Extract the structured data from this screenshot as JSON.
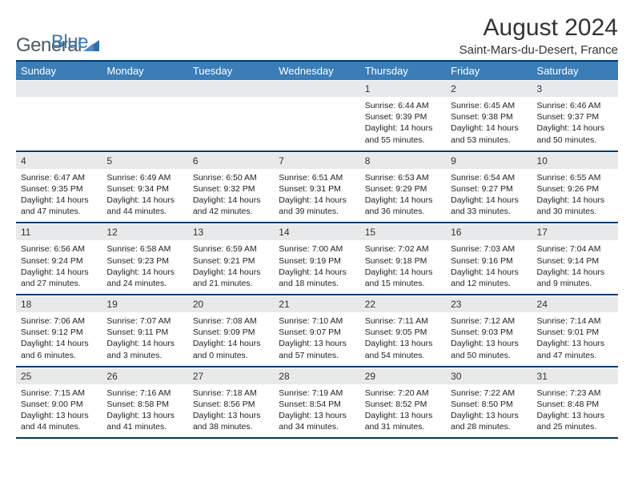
{
  "brand": {
    "part1": "General",
    "part2": "Blue"
  },
  "title": "August 2024",
  "subtitle": "Saint-Mars-du-Desert, France",
  "colors": {
    "header_bg": "#3b7db7",
    "border_dark": "#003a6b",
    "daynum_bg": "#e8e9ea",
    "text": "#222222",
    "logo_gray": "#4b5a66"
  },
  "day_headers": [
    "Sunday",
    "Monday",
    "Tuesday",
    "Wednesday",
    "Thursday",
    "Friday",
    "Saturday"
  ],
  "weeks": [
    [
      {
        "empty": true
      },
      {
        "empty": true
      },
      {
        "empty": true
      },
      {
        "empty": true
      },
      {
        "n": "1",
        "sr": "Sunrise: 6:44 AM",
        "ss": "Sunset: 9:39 PM",
        "dl1": "Daylight: 14 hours",
        "dl2": "and 55 minutes."
      },
      {
        "n": "2",
        "sr": "Sunrise: 6:45 AM",
        "ss": "Sunset: 9:38 PM",
        "dl1": "Daylight: 14 hours",
        "dl2": "and 53 minutes."
      },
      {
        "n": "3",
        "sr": "Sunrise: 6:46 AM",
        "ss": "Sunset: 9:37 PM",
        "dl1": "Daylight: 14 hours",
        "dl2": "and 50 minutes."
      }
    ],
    [
      {
        "n": "4",
        "sr": "Sunrise: 6:47 AM",
        "ss": "Sunset: 9:35 PM",
        "dl1": "Daylight: 14 hours",
        "dl2": "and 47 minutes."
      },
      {
        "n": "5",
        "sr": "Sunrise: 6:49 AM",
        "ss": "Sunset: 9:34 PM",
        "dl1": "Daylight: 14 hours",
        "dl2": "and 44 minutes."
      },
      {
        "n": "6",
        "sr": "Sunrise: 6:50 AM",
        "ss": "Sunset: 9:32 PM",
        "dl1": "Daylight: 14 hours",
        "dl2": "and 42 minutes."
      },
      {
        "n": "7",
        "sr": "Sunrise: 6:51 AM",
        "ss": "Sunset: 9:31 PM",
        "dl1": "Daylight: 14 hours",
        "dl2": "and 39 minutes."
      },
      {
        "n": "8",
        "sr": "Sunrise: 6:53 AM",
        "ss": "Sunset: 9:29 PM",
        "dl1": "Daylight: 14 hours",
        "dl2": "and 36 minutes."
      },
      {
        "n": "9",
        "sr": "Sunrise: 6:54 AM",
        "ss": "Sunset: 9:27 PM",
        "dl1": "Daylight: 14 hours",
        "dl2": "and 33 minutes."
      },
      {
        "n": "10",
        "sr": "Sunrise: 6:55 AM",
        "ss": "Sunset: 9:26 PM",
        "dl1": "Daylight: 14 hours",
        "dl2": "and 30 minutes."
      }
    ],
    [
      {
        "n": "11",
        "sr": "Sunrise: 6:56 AM",
        "ss": "Sunset: 9:24 PM",
        "dl1": "Daylight: 14 hours",
        "dl2": "and 27 minutes."
      },
      {
        "n": "12",
        "sr": "Sunrise: 6:58 AM",
        "ss": "Sunset: 9:23 PM",
        "dl1": "Daylight: 14 hours",
        "dl2": "and 24 minutes."
      },
      {
        "n": "13",
        "sr": "Sunrise: 6:59 AM",
        "ss": "Sunset: 9:21 PM",
        "dl1": "Daylight: 14 hours",
        "dl2": "and 21 minutes."
      },
      {
        "n": "14",
        "sr": "Sunrise: 7:00 AM",
        "ss": "Sunset: 9:19 PM",
        "dl1": "Daylight: 14 hours",
        "dl2": "and 18 minutes."
      },
      {
        "n": "15",
        "sr": "Sunrise: 7:02 AM",
        "ss": "Sunset: 9:18 PM",
        "dl1": "Daylight: 14 hours",
        "dl2": "and 15 minutes."
      },
      {
        "n": "16",
        "sr": "Sunrise: 7:03 AM",
        "ss": "Sunset: 9:16 PM",
        "dl1": "Daylight: 14 hours",
        "dl2": "and 12 minutes."
      },
      {
        "n": "17",
        "sr": "Sunrise: 7:04 AM",
        "ss": "Sunset: 9:14 PM",
        "dl1": "Daylight: 14 hours",
        "dl2": "and 9 minutes."
      }
    ],
    [
      {
        "n": "18",
        "sr": "Sunrise: 7:06 AM",
        "ss": "Sunset: 9:12 PM",
        "dl1": "Daylight: 14 hours",
        "dl2": "and 6 minutes."
      },
      {
        "n": "19",
        "sr": "Sunrise: 7:07 AM",
        "ss": "Sunset: 9:11 PM",
        "dl1": "Daylight: 14 hours",
        "dl2": "and 3 minutes."
      },
      {
        "n": "20",
        "sr": "Sunrise: 7:08 AM",
        "ss": "Sunset: 9:09 PM",
        "dl1": "Daylight: 14 hours",
        "dl2": "and 0 minutes."
      },
      {
        "n": "21",
        "sr": "Sunrise: 7:10 AM",
        "ss": "Sunset: 9:07 PM",
        "dl1": "Daylight: 13 hours",
        "dl2": "and 57 minutes."
      },
      {
        "n": "22",
        "sr": "Sunrise: 7:11 AM",
        "ss": "Sunset: 9:05 PM",
        "dl1": "Daylight: 13 hours",
        "dl2": "and 54 minutes."
      },
      {
        "n": "23",
        "sr": "Sunrise: 7:12 AM",
        "ss": "Sunset: 9:03 PM",
        "dl1": "Daylight: 13 hours",
        "dl2": "and 50 minutes."
      },
      {
        "n": "24",
        "sr": "Sunrise: 7:14 AM",
        "ss": "Sunset: 9:01 PM",
        "dl1": "Daylight: 13 hours",
        "dl2": "and 47 minutes."
      }
    ],
    [
      {
        "n": "25",
        "sr": "Sunrise: 7:15 AM",
        "ss": "Sunset: 9:00 PM",
        "dl1": "Daylight: 13 hours",
        "dl2": "and 44 minutes."
      },
      {
        "n": "26",
        "sr": "Sunrise: 7:16 AM",
        "ss": "Sunset: 8:58 PM",
        "dl1": "Daylight: 13 hours",
        "dl2": "and 41 minutes."
      },
      {
        "n": "27",
        "sr": "Sunrise: 7:18 AM",
        "ss": "Sunset: 8:56 PM",
        "dl1": "Daylight: 13 hours",
        "dl2": "and 38 minutes."
      },
      {
        "n": "28",
        "sr": "Sunrise: 7:19 AM",
        "ss": "Sunset: 8:54 PM",
        "dl1": "Daylight: 13 hours",
        "dl2": "and 34 minutes."
      },
      {
        "n": "29",
        "sr": "Sunrise: 7:20 AM",
        "ss": "Sunset: 8:52 PM",
        "dl1": "Daylight: 13 hours",
        "dl2": "and 31 minutes."
      },
      {
        "n": "30",
        "sr": "Sunrise: 7:22 AM",
        "ss": "Sunset: 8:50 PM",
        "dl1": "Daylight: 13 hours",
        "dl2": "and 28 minutes."
      },
      {
        "n": "31",
        "sr": "Sunrise: 7:23 AM",
        "ss": "Sunset: 8:48 PM",
        "dl1": "Daylight: 13 hours",
        "dl2": "and 25 minutes."
      }
    ]
  ]
}
